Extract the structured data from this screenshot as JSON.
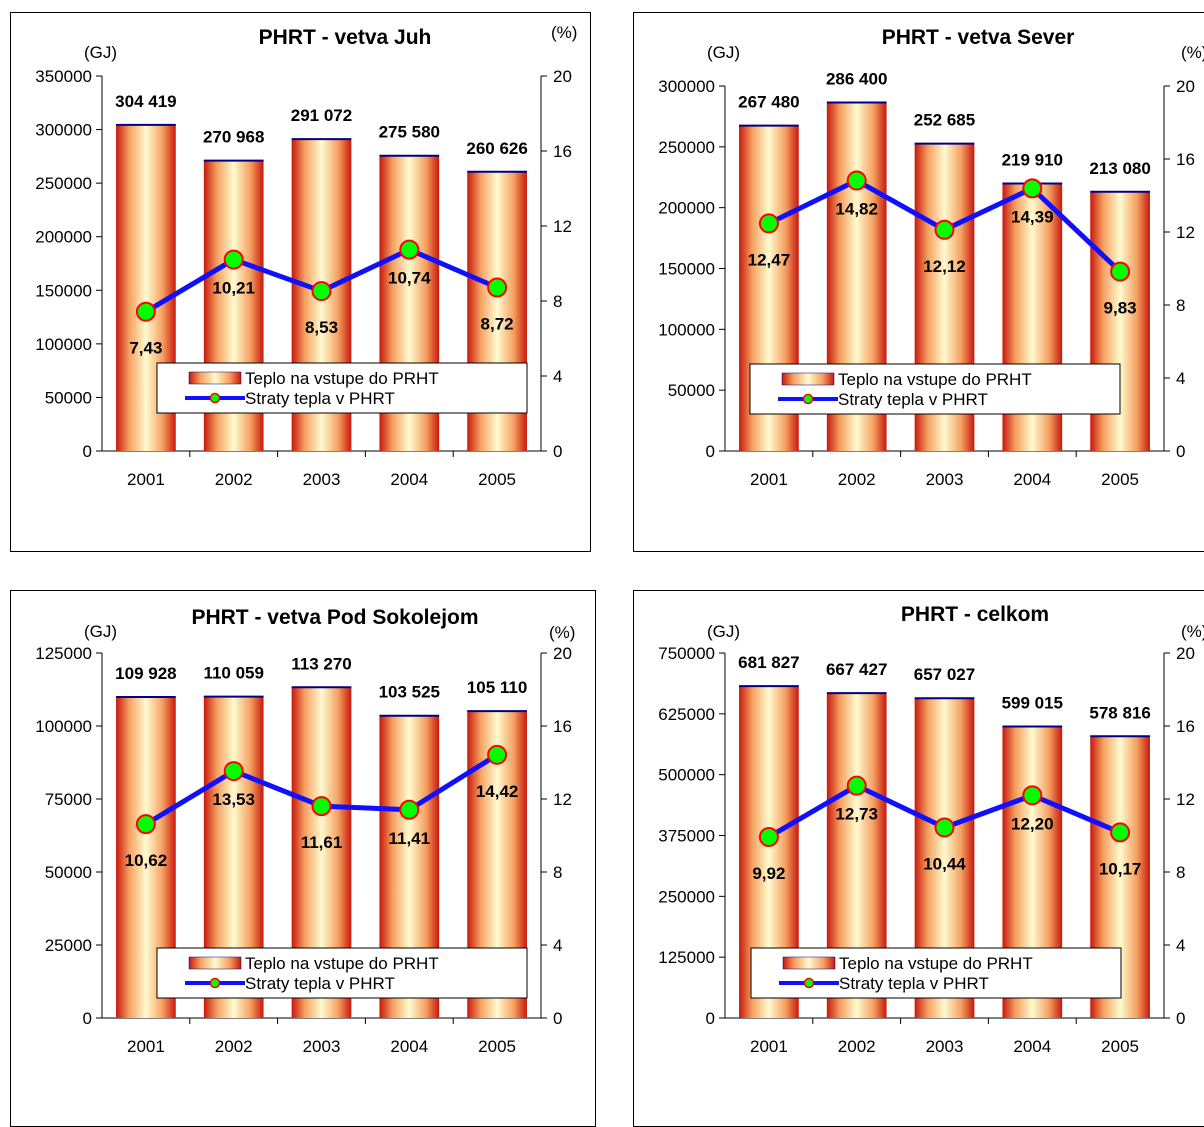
{
  "legend": {
    "bars": "Teplo na vstupe do PRHT",
    "line": "Straty tepla v PHRT"
  },
  "colors": {
    "bar_center": "#fffbd0",
    "bar_mid": "#f5a060",
    "bar_edge": "#c8180c",
    "bar_top": "#000080",
    "line": "#1010ff",
    "marker_fill": "#00ff00",
    "marker_stroke": "#ff0000",
    "axis": "#000000"
  },
  "chart_data": [
    {
      "type": "bar",
      "title": "PHRT - vetva Juh",
      "ylabel": "(GJ)",
      "y2label": "(%)",
      "categories": [
        "2001",
        "2002",
        "2003",
        "2004",
        "2005"
      ],
      "ylim": [
        0,
        350000
      ],
      "yticks": [
        "0",
        "50000",
        "100000",
        "150000",
        "200000",
        "250000",
        "300000",
        "350000"
      ],
      "y2lim": [
        0,
        20
      ],
      "y2ticks": [
        "0",
        "4",
        "8",
        "12",
        "16",
        "20"
      ],
      "series": [
        {
          "name": "Teplo na vstupe do PRHT",
          "type": "bar",
          "axis": "left",
          "values": [
            304419,
            270968,
            291072,
            275580,
            260626
          ],
          "labels": [
            "304 419",
            "270 968",
            "291 072",
            "275 580",
            "260 626"
          ]
        },
        {
          "name": "Straty tepla v PHRT",
          "type": "line",
          "axis": "right",
          "values": [
            7.43,
            10.21,
            8.53,
            10.74,
            8.72
          ],
          "labels": [
            "7,43",
            "10,21",
            "8,53",
            "10,74",
            "8,72"
          ]
        }
      ],
      "legend_position": "lower-center"
    },
    {
      "type": "bar",
      "title": "PHRT - vetva Sever",
      "ylabel": "(GJ)",
      "y2label": "(%)",
      "categories": [
        "2001",
        "2002",
        "2003",
        "2004",
        "2005"
      ],
      "ylim": [
        0,
        300000
      ],
      "yticks": [
        "0",
        "50000",
        "100000",
        "150000",
        "200000",
        "250000",
        "300000"
      ],
      "y2lim": [
        0,
        20
      ],
      "y2ticks": [
        "0",
        "4",
        "8",
        "12",
        "16",
        "20"
      ],
      "series": [
        {
          "name": "Teplo na vstupe do PRHT",
          "type": "bar",
          "axis": "left",
          "values": [
            267480,
            286400,
            252685,
            219910,
            213080
          ],
          "labels": [
            "267 480",
            "286 400",
            "252 685",
            "219 910",
            "213 080"
          ]
        },
        {
          "name": "Straty tepla v PHRT",
          "type": "line",
          "axis": "right",
          "values": [
            12.47,
            14.82,
            12.12,
            14.39,
            9.83
          ],
          "labels": [
            "12,47",
            "14,82",
            "12,12",
            "14,39",
            "9,83"
          ]
        }
      ],
      "legend_position": "lower-center"
    },
    {
      "type": "bar",
      "title": "PHRT - vetva Pod Sokolejom",
      "ylabel": "(GJ)",
      "y2label": "(%)",
      "categories": [
        "2001",
        "2002",
        "2003",
        "2004",
        "2005"
      ],
      "ylim": [
        0,
        125000
      ],
      "yticks": [
        "0",
        "25000",
        "50000",
        "75000",
        "100000",
        "125000"
      ],
      "y2lim": [
        0,
        20
      ],
      "y2ticks": [
        "0",
        "4",
        "8",
        "12",
        "16",
        "20"
      ],
      "series": [
        {
          "name": "Teplo na vstupe do PRHT",
          "type": "bar",
          "axis": "left",
          "values": [
            109928,
            110059,
            113270,
            103525,
            105110
          ],
          "labels": [
            "109 928",
            "110 059",
            "113 270",
            "103 525",
            "105 110"
          ]
        },
        {
          "name": "Straty tepla v PHRT",
          "type": "line",
          "axis": "right",
          "values": [
            10.62,
            13.53,
            11.61,
            11.41,
            14.42
          ],
          "labels": [
            "10,62",
            "13,53",
            "11,61",
            "11,41",
            "14,42"
          ]
        }
      ],
      "legend_position": "lower-center"
    },
    {
      "type": "bar",
      "title": "PHRT - celkom",
      "ylabel": "(GJ)",
      "y2label": "(%)",
      "categories": [
        "2001",
        "2002",
        "2003",
        "2004",
        "2005"
      ],
      "ylim": [
        0,
        750000
      ],
      "yticks": [
        "0",
        "125000",
        "250000",
        "375000",
        "500000",
        "625000",
        "750000"
      ],
      "y2lim": [
        0,
        20
      ],
      "y2ticks": [
        "0",
        "4",
        "8",
        "12",
        "16",
        "20"
      ],
      "series": [
        {
          "name": "Teplo na vstupe do PRHT",
          "type": "bar",
          "axis": "left",
          "values": [
            681827,
            667427,
            657027,
            599015,
            578816
          ],
          "labels": [
            "681 827",
            "667 427",
            "657 027",
            "599 015",
            "578 816"
          ]
        },
        {
          "name": "Straty tepla v PHRT",
          "type": "line",
          "axis": "right",
          "values": [
            9.92,
            12.73,
            10.44,
            12.2,
            10.17
          ],
          "labels": [
            "9,92",
            "12,73",
            "10,44",
            "12,20",
            "10,17"
          ]
        }
      ],
      "legend_position": "lower-center"
    }
  ]
}
